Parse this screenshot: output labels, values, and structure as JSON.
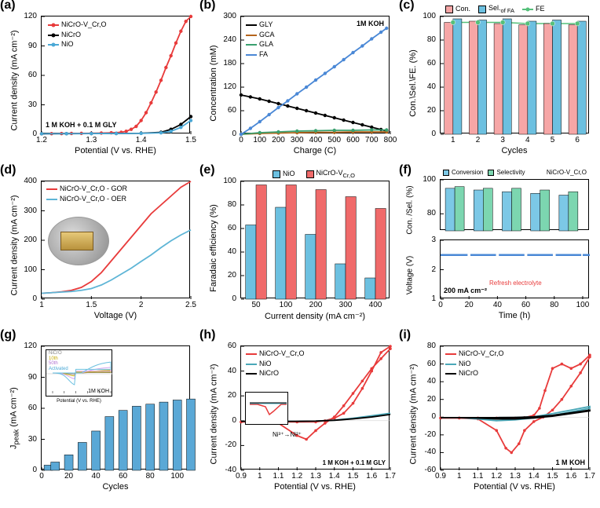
{
  "panels": {
    "a": {
      "label": "(a)",
      "xlabel": "Potential (V vs. RHE)",
      "ylabel": "Current density (mA cm⁻²)",
      "xlim": [
        1.2,
        1.5
      ],
      "xticks": [
        1.2,
        1.3,
        1.4,
        1.5
      ],
      "ylim": [
        0,
        120
      ],
      "yticks": [
        0,
        30,
        60,
        90,
        120
      ],
      "note": "1 M KOH + 0.1 M GLY",
      "series": [
        {
          "name": "NiCrO-V_Cr,O",
          "color": "#e83b3b",
          "marker": "circle",
          "x": [
            1.2,
            1.22,
            1.24,
            1.26,
            1.28,
            1.3,
            1.32,
            1.34,
            1.36,
            1.37,
            1.38,
            1.39,
            1.4,
            1.41,
            1.42,
            1.43,
            1.44,
            1.45,
            1.46,
            1.47,
            1.48,
            1.49,
            1.5
          ],
          "y": [
            0.5,
            0.6,
            0.7,
            0.8,
            0.9,
            1.0,
            1.2,
            1.5,
            2,
            3,
            5,
            8,
            14,
            22,
            32,
            43,
            55,
            68,
            80,
            93,
            105,
            115,
            120
          ]
        },
        {
          "name": "NiCrO",
          "color": "#000000",
          "marker": "circle",
          "x": [
            1.2,
            1.25,
            1.3,
            1.35,
            1.4,
            1.44,
            1.46,
            1.48,
            1.5
          ],
          "y": [
            0.5,
            0.6,
            0.7,
            0.8,
            1,
            2,
            5,
            10,
            18
          ]
        },
        {
          "name": "NiO",
          "color": "#4aa8d6",
          "marker": "circle",
          "x": [
            1.2,
            1.25,
            1.3,
            1.35,
            1.4,
            1.44,
            1.46,
            1.48,
            1.5
          ],
          "y": [
            0.5,
            0.6,
            0.7,
            0.8,
            0.9,
            1.5,
            3,
            7,
            14
          ]
        }
      ]
    },
    "b": {
      "label": "(b)",
      "xlabel": "Charge (C)",
      "ylabel": "Concentration (mM)",
      "xlim": [
        0,
        800
      ],
      "xticks": [
        0,
        100,
        200,
        300,
        400,
        500,
        600,
        700,
        800
      ],
      "ylim": [
        0,
        300
      ],
      "yticks": [
        0,
        60,
        120,
        180,
        240,
        300
      ],
      "note": "1M KOH",
      "series": [
        {
          "name": "GLY",
          "color": "#000000",
          "marker": "square",
          "x": [
            0,
            50,
            100,
            150,
            200,
            250,
            300,
            350,
            400,
            450,
            500,
            550,
            600,
            650,
            700,
            750,
            780
          ],
          "y": [
            100,
            95,
            90,
            84,
            78,
            72,
            66,
            60,
            54,
            48,
            42,
            36,
            30,
            24,
            18,
            12,
            8
          ]
        },
        {
          "name": "GCA",
          "color": "#b5651d",
          "marker": "circle",
          "x": [
            0,
            100,
            200,
            300,
            400,
            500,
            600,
            700,
            780
          ],
          "y": [
            0,
            2,
            3,
            4,
            5,
            5,
            6,
            6,
            6
          ]
        },
        {
          "name": "GLA",
          "color": "#3aa06f",
          "marker": "diamond",
          "x": [
            0,
            100,
            200,
            300,
            400,
            500,
            600,
            700,
            780
          ],
          "y": [
            0,
            4,
            6,
            8,
            9,
            10,
            10,
            11,
            11
          ]
        },
        {
          "name": "FA",
          "color": "#4a88d6",
          "marker": "triangle",
          "x": [
            0,
            50,
            100,
            150,
            200,
            250,
            300,
            350,
            400,
            450,
            500,
            550,
            600,
            650,
            700,
            750,
            780
          ],
          "y": [
            0,
            15,
            32,
            50,
            68,
            85,
            103,
            120,
            138,
            155,
            172,
            190,
            208,
            225,
            243,
            260,
            270
          ]
        }
      ]
    },
    "c": {
      "label": "(c)",
      "xlabel": "Cycles",
      "ylabel": "Con.\\Sel.\\FE. (%)",
      "ylim": [
        0,
        100
      ],
      "yticks": [
        0,
        20,
        40,
        60,
        80,
        100
      ],
      "categories": [
        1,
        2,
        3,
        4,
        5,
        6
      ],
      "bars": {
        "Con.": {
          "color": "#f6a6a6",
          "values": [
            95,
            96,
            94,
            93,
            94,
            93
          ]
        },
        "Sel._of FA": {
          "color": "#6cc0e0",
          "values": [
            98,
            97,
            98,
            96,
            97,
            96
          ]
        }
      },
      "line": {
        "name": "FE",
        "color": "#55c07a",
        "values": [
          95,
          95,
          95,
          94,
          94,
          94
        ]
      }
    },
    "d": {
      "label": "(d)",
      "xlabel": "Voltage (V)",
      "ylabel": "Current density (mA cm⁻²)",
      "xlim": [
        1.0,
        2.5
      ],
      "xticks": [
        1.0,
        1.5,
        2.0,
        2.5
      ],
      "ylim": [
        0,
        400
      ],
      "yticks": [
        0,
        100,
        200,
        300,
        400
      ],
      "series": [
        {
          "name": "NiCrO-V_Cr,O - GOR",
          "color": "#e83b3b",
          "x": [
            1.0,
            1.1,
            1.2,
            1.3,
            1.4,
            1.5,
            1.6,
            1.7,
            1.8,
            1.9,
            2.0,
            2.1,
            2.2,
            2.3,
            2.4,
            2.5
          ],
          "y": [
            20,
            22,
            25,
            30,
            40,
            60,
            90,
            130,
            170,
            210,
            250,
            290,
            320,
            350,
            380,
            400
          ]
        },
        {
          "name": "NiCrO-V_Cr,O - OER",
          "color": "#5eb5d6",
          "x": [
            1.0,
            1.1,
            1.2,
            1.3,
            1.4,
            1.5,
            1.6,
            1.7,
            1.8,
            1.9,
            2.0,
            2.1,
            2.2,
            2.3,
            2.4,
            2.5
          ],
          "y": [
            20,
            22,
            24,
            26,
            30,
            36,
            48,
            65,
            85,
            105,
            128,
            150,
            175,
            198,
            218,
            235
          ]
        }
      ],
      "has_inset_photo": true
    },
    "e": {
      "label": "(e)",
      "xlabel": "Current density (mA cm⁻²)",
      "ylabel": "Faradaic efficiency (%)",
      "ylim": [
        0,
        100
      ],
      "yticks": [
        0,
        20,
        40,
        60,
        80,
        100
      ],
      "categories": [
        50,
        100,
        200,
        300,
        400
      ],
      "bars": {
        "NiO": {
          "color": "#6cc0e0",
          "values": [
            63,
            78,
            55,
            30,
            18
          ]
        },
        "NiCrO-V_Cr,O": {
          "color": "#f06a6a",
          "values": [
            97,
            97,
            93,
            87,
            77
          ]
        }
      }
    },
    "f": {
      "label": "(f)",
      "xlabel": "Time (h)",
      "top": {
        "ylabel": "Con. /Sel. (%)",
        "ylim": [
          70,
          100
        ],
        "yticks": [
          80,
          100
        ],
        "bars": {
          "Conversion": {
            "color": "#7cc8e6",
            "values": [
              95,
              94,
              93,
              92,
              91
            ]
          },
          "Selectivity": {
            "color": "#7cd6b0",
            "values": [
              96,
              95,
              95,
              94,
              93
            ]
          }
        },
        "x_positions": [
          10,
          30,
          50,
          70,
          90
        ],
        "note_top": "NiCrO-V_Cr,O"
      },
      "bottom": {
        "ylabel": "Voltage (V)",
        "ylim": [
          1,
          3
        ],
        "yticks": [
          1,
          2,
          3
        ],
        "xlim": [
          0,
          105
        ],
        "xticks": [
          0,
          20,
          40,
          60,
          80,
          100
        ],
        "line_color": "#4a88d6",
        "voltage_y": 2.5,
        "note": "200 mA cm⁻²",
        "note2": "Refresh electrolyte",
        "note2_color": "#e83b3b"
      }
    },
    "g": {
      "label": "(g)",
      "xlabel": "Cycles",
      "ylabel": "J_peak (mA cm⁻²)",
      "xlim": [
        0,
        110
      ],
      "xticks": [
        0,
        20,
        40,
        60,
        80,
        100
      ],
      "ylim": [
        0,
        120
      ],
      "yticks": [
        0,
        30,
        60,
        90,
        120
      ],
      "bar_color": "#5aa8d6",
      "bars_x": [
        5,
        10,
        20,
        30,
        40,
        50,
        60,
        70,
        80,
        90,
        100,
        110
      ],
      "bars_y": [
        5,
        8,
        15,
        27,
        38,
        52,
        58,
        62,
        64,
        66,
        68,
        69
      ],
      "inset": {
        "xlabel": "Potential (V vs. RHE)",
        "xlim": [
          1.1,
          1.6
        ],
        "ylim": [
          -30,
          30
        ],
        "note": "1M KOH",
        "legend": [
          "NiCrO",
          "10th",
          "50th",
          "Activated"
        ],
        "colors": [
          "#888888",
          "#c4a800",
          "#d6a6f0",
          "#6cc0e0"
        ]
      }
    },
    "h": {
      "label": "(h)",
      "xlabel": "Potential (V vs. RHE)",
      "ylabel": "Current density (mA cm⁻²)",
      "xlim": [
        0.9,
        1.7
      ],
      "xticks": [
        0.9,
        1.0,
        1.1,
        1.2,
        1.3,
        1.4,
        1.5,
        1.6,
        1.7
      ],
      "ylim": [
        -40,
        60
      ],
      "yticks": [
        -40,
        -20,
        0,
        20,
        40,
        60
      ],
      "note": "1 M KOH + 0.1 M GLY",
      "note2": "Ni³⁺→Ni²⁺",
      "inset": true,
      "series": [
        {
          "name": "NiCrO-V_Cr,O",
          "color": "#e83b3b",
          "x_fwd": [
            0.9,
            1.0,
            1.1,
            1.2,
            1.3,
            1.35,
            1.4,
            1.45,
            1.5,
            1.55,
            1.6,
            1.65,
            1.7
          ],
          "y_fwd": [
            -1,
            -1,
            -1,
            -1,
            -1,
            0,
            2,
            6,
            14,
            26,
            40,
            55,
            60
          ],
          "x_rev": [
            1.7,
            1.65,
            1.6,
            1.55,
            1.5,
            1.45,
            1.4,
            1.35,
            1.3,
            1.25,
            1.2,
            1.1,
            1.0,
            0.9
          ],
          "y_rev": [
            58,
            50,
            42,
            32,
            22,
            12,
            3,
            -2,
            -8,
            -15,
            -12,
            -2,
            -1,
            -1
          ]
        },
        {
          "name": "NiO",
          "color": "#4aa8b8",
          "x_fwd": [
            0.9,
            1.0,
            1.1,
            1.2,
            1.3,
            1.4,
            1.5,
            1.6,
            1.7
          ],
          "y_fwd": [
            -0.5,
            -0.5,
            -0.5,
            -0.5,
            -0.3,
            0.5,
            2,
            4,
            6
          ]
        },
        {
          "name": "NiCrO",
          "color": "#000000",
          "x_fwd": [
            0.9,
            1.0,
            1.1,
            1.2,
            1.3,
            1.4,
            1.5,
            1.6,
            1.7
          ],
          "y_fwd": [
            -0.5,
            -0.5,
            -0.5,
            -0.5,
            -0.3,
            0.3,
            1.5,
            3,
            5
          ]
        }
      ]
    },
    "i": {
      "label": "(i)",
      "xlabel": "Potential (V vs. RHE)",
      "ylabel": "Current density (mA cm⁻²)",
      "xlim": [
        0.9,
        1.7
      ],
      "xticks": [
        0.9,
        1.0,
        1.1,
        1.2,
        1.3,
        1.4,
        1.5,
        1.6,
        1.7
      ],
      "ylim": [
        -60,
        80
      ],
      "yticks": [
        -60,
        -40,
        -20,
        0,
        20,
        40,
        60,
        80
      ],
      "note": "1 M KOH",
      "series": [
        {
          "name": "NiCrO-V_Cr,O",
          "color": "#e83b3b",
          "x_fwd": [
            0.9,
            1.0,
            1.1,
            1.2,
            1.3,
            1.35,
            1.4,
            1.43,
            1.46,
            1.5,
            1.55,
            1.6,
            1.65,
            1.7
          ],
          "y_fwd": [
            -1,
            -1,
            -1,
            -1,
            -1,
            -0.5,
            2,
            10,
            30,
            55,
            60,
            55,
            60,
            70
          ],
          "x_rev": [
            1.7,
            1.65,
            1.6,
            1.55,
            1.5,
            1.45,
            1.4,
            1.35,
            1.32,
            1.28,
            1.25,
            1.2,
            1.1,
            1.0,
            0.9
          ],
          "y_rev": [
            68,
            50,
            35,
            20,
            8,
            0,
            -5,
            -15,
            -30,
            -40,
            -35,
            -15,
            -2,
            -1,
            -1
          ]
        },
        {
          "name": "NiO",
          "color": "#4aa8b8",
          "x_fwd": [
            0.9,
            1.0,
            1.1,
            1.2,
            1.3,
            1.4,
            1.5,
            1.6,
            1.7
          ],
          "y_fwd": [
            -0.5,
            -0.5,
            -0.5,
            -0.5,
            -0.3,
            0.5,
            4,
            8,
            12
          ],
          "x_rev": [
            1.7,
            1.6,
            1.5,
            1.4,
            1.3,
            1.2,
            1.1,
            1.0,
            0.9
          ],
          "y_rev": [
            10,
            6,
            2,
            -1,
            -3,
            -4,
            -2,
            -0.5,
            -0.5
          ]
        },
        {
          "name": "NiCrO",
          "color": "#000000",
          "x_fwd": [
            0.9,
            1.0,
            1.1,
            1.2,
            1.3,
            1.4,
            1.5,
            1.6,
            1.7
          ],
          "y_fwd": [
            -0.5,
            -0.5,
            -0.5,
            -0.5,
            -0.3,
            0.3,
            2,
            5,
            8
          ],
          "x_rev": [
            1.7,
            1.6,
            1.5,
            1.4,
            1.3,
            1.2,
            1.1,
            1.0,
            0.9
          ],
          "y_rev": [
            7,
            4,
            1,
            -1,
            -2,
            -2,
            -1,
            -0.5,
            -0.5
          ]
        }
      ]
    }
  }
}
